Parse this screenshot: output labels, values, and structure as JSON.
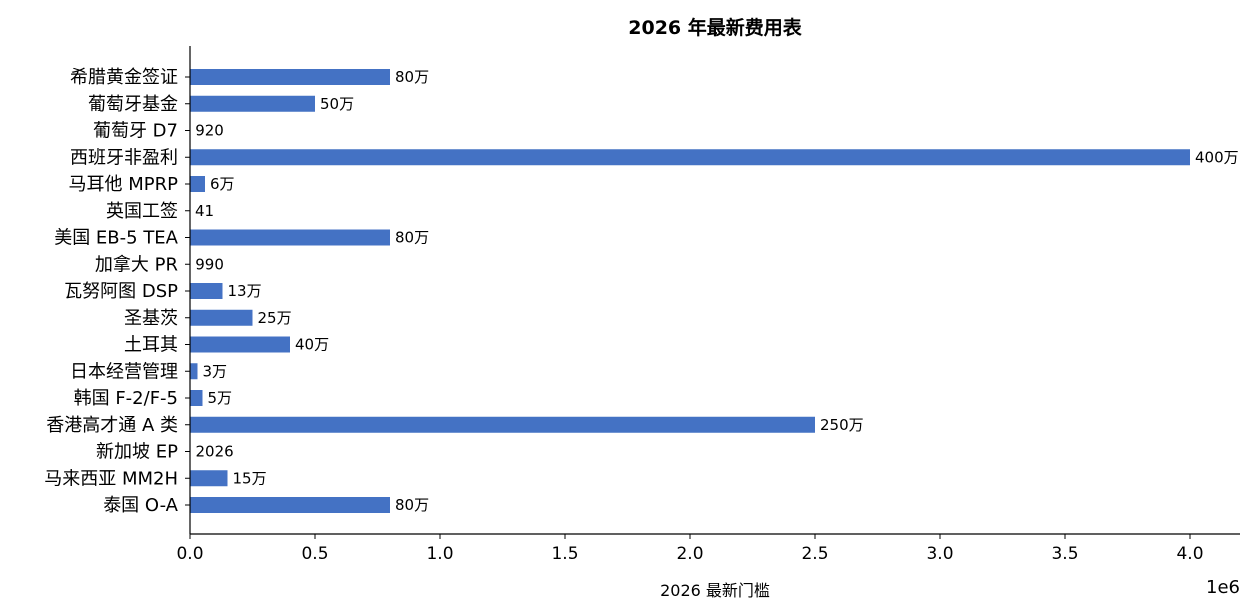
{
  "chart_data": {
    "type": "bar",
    "orientation": "horizontal",
    "title": "2026 年最新费用表",
    "xlabel": "2026 最新门槛",
    "ylabel": "",
    "x_exponent_label": "1e6",
    "xlim": [
      0,
      4200000
    ],
    "x_ticks": [
      0,
      500000,
      1000000,
      1500000,
      2000000,
      2500000,
      3000000,
      3500000,
      4000000
    ],
    "x_tick_labels": [
      "0.0",
      "0.5",
      "1.0",
      "1.5",
      "2.0",
      "2.5",
      "3.0",
      "3.5",
      "4.0"
    ],
    "bar_color": "#4472C4",
    "grid": false,
    "categories": [
      "希腊黄金签证",
      "葡萄牙基金",
      "葡萄牙 D7",
      "西班牙非盈利",
      "马耳他 MPRP",
      "英国工签",
      "美国 EB-5 TEA",
      "加拿大 PR",
      "瓦努阿图 DSP",
      "圣基茨",
      "土耳其",
      "日本经营管理",
      "韩国 F-2/F-5",
      "香港高才通 A 类",
      "新加坡 EP",
      "马来西亚 MM2H",
      "泰国 O-A"
    ],
    "values": [
      800000,
      500000,
      920,
      4000000,
      60000,
      41,
      800000,
      990,
      130000,
      250000,
      400000,
      30000,
      50000,
      2500000,
      2026,
      150000,
      800000
    ],
    "data_labels": [
      "80万",
      "50万",
      "920",
      "400万",
      "6万",
      "41",
      "80万",
      "990",
      "13万",
      "25万",
      "40万",
      "3万",
      "5万",
      "250万",
      "2026",
      "15万",
      "80万"
    ]
  }
}
